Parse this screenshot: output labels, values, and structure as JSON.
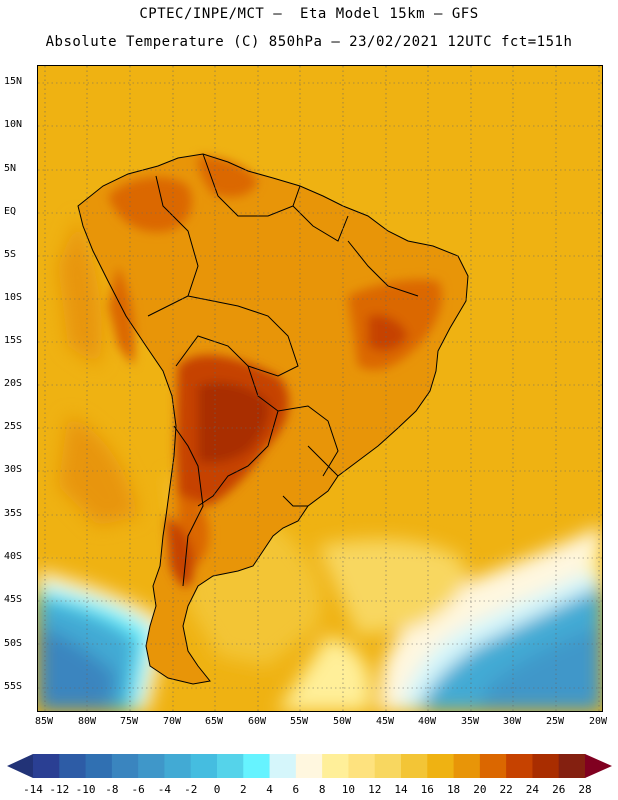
{
  "title": {
    "line1": "CPTEC/INPE/MCT –  Eta Model 15km – GFS",
    "line2": "Absolute Temperature (C) 850hPa – 23/02/2021 12UTC fct=151h"
  },
  "axes": {
    "lat_labels": [
      "15N",
      "10N",
      "5N",
      "EQ",
      "5S",
      "10S",
      "15S",
      "20S",
      "25S",
      "30S",
      "35S",
      "40S",
      "45S",
      "50S",
      "55S"
    ],
    "lon_labels": [
      "85W",
      "80W",
      "75W",
      "70W",
      "65W",
      "60W",
      "55W",
      "50W",
      "45W",
      "40W",
      "35W",
      "30W",
      "25W",
      "20W"
    ]
  },
  "colorbar": {
    "ticks": [
      "-14",
      "-12",
      "-10",
      "-8",
      "-6",
      "-4",
      "-2",
      "0",
      "2",
      "4",
      "6",
      "8",
      "10",
      "12",
      "14",
      "16",
      "18",
      "20",
      "22",
      "24",
      "26",
      "28"
    ],
    "colors": [
      "#2a3f93",
      "#2d5ca6",
      "#3070b2",
      "#3a85bf",
      "#3f97c9",
      "#42aad4",
      "#45bde0",
      "#55d3ea",
      "#66f3ff",
      "#d5f6fb",
      "#fff7df",
      "#ffef99",
      "#fee27e",
      "#f8d760",
      "#f3c536",
      "#efb212",
      "#e89508",
      "#db6700",
      "#c64200",
      "#a92d00",
      "#842010"
    ],
    "low_color": "#223377",
    "high_color": "#800020"
  },
  "map": {
    "ocean_color": "#efb212",
    "land_color": "#e89508"
  }
}
